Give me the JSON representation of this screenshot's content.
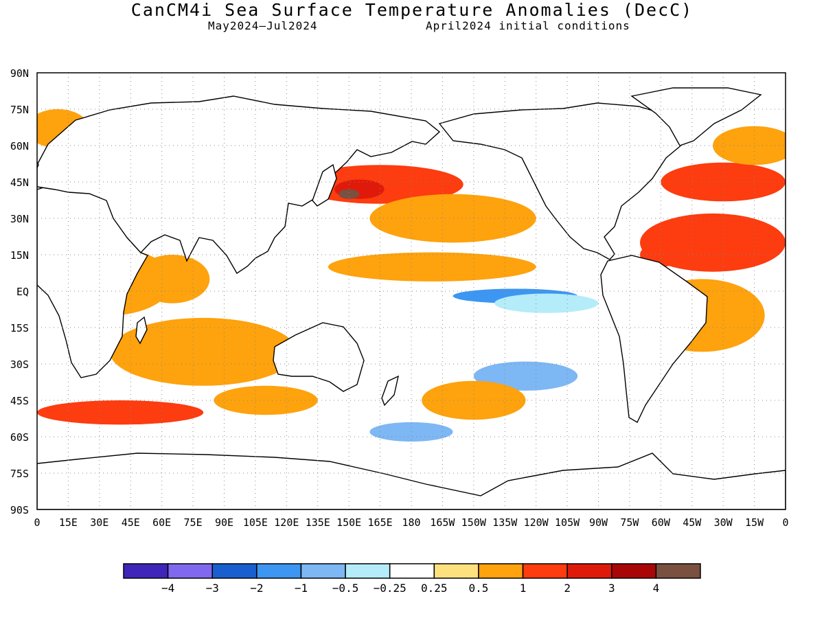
{
  "title": "CanCM4i Sea Surface Temperature Anomalies (DecC)",
  "subtitle_left": "May2024—Jul2024",
  "subtitle_right": "April2024 initial conditions",
  "map": {
    "lat_labels": [
      "90N",
      "75N",
      "60N",
      "45N",
      "30N",
      "15N",
      "EQ",
      "15S",
      "30S",
      "45S",
      "60S",
      "75S",
      "90S"
    ],
    "lon_labels": [
      "0",
      "15E",
      "30E",
      "45E",
      "60E",
      "75E",
      "90E",
      "105E",
      "120E",
      "135E",
      "150E",
      "165E",
      "180",
      "165W",
      "150W",
      "135W",
      "120W",
      "105W",
      "90W",
      "75W",
      "60W",
      "45W",
      "30W",
      "15W",
      "0"
    ],
    "grid_lines": "dotted"
  },
  "colorbar": {
    "colors": [
      "#3f26b8",
      "#8069ee",
      "#1a5fd0",
      "#3c96f2",
      "#7db7f4",
      "#b4ecfa",
      "#ffffff",
      "#fde17e",
      "#fea20d",
      "#fd3c0f",
      "#e01a0b",
      "#a90707",
      "#7a5040"
    ],
    "tick_labels": [
      "−4",
      "−3",
      "−2",
      "−1",
      "−0.5",
      "−0.25",
      "0.25",
      "0.5",
      "1",
      "2",
      "3",
      "4"
    ]
  },
  "sst_regions": [
    {
      "lon": 35,
      "lat": 4,
      "rx": 30,
      "ry": 14,
      "level": "0.5"
    },
    {
      "lon": 65,
      "lat": 5,
      "rx": 18,
      "ry": 10,
      "level": "0.5"
    },
    {
      "lon": 80,
      "lat": -25,
      "rx": 45,
      "ry": 14,
      "level": "0.5"
    },
    {
      "lon": 40,
      "lat": -50,
      "rx": 40,
      "ry": 5,
      "level": "1"
    },
    {
      "lon": 110,
      "lat": -45,
      "rx": 25,
      "ry": 6,
      "level": "0.5"
    },
    {
      "lon": 165,
      "lat": 44,
      "rx": 40,
      "ry": 8,
      "level": "1"
    },
    {
      "lon": 155,
      "lat": 42,
      "rx": 12,
      "ry": 4,
      "level": "2"
    },
    {
      "lon": 150,
      "lat": 40,
      "rx": 5,
      "ry": 2,
      "level": "4"
    },
    {
      "lon": 200,
      "lat": 30,
      "rx": 40,
      "ry": 10,
      "level": "0.5"
    },
    {
      "lon": 190,
      "lat": 10,
      "rx": 50,
      "ry": 6,
      "level": "0.5"
    },
    {
      "lon": 230,
      "lat": -2,
      "rx": 30,
      "ry": 3,
      "level": "-1"
    },
    {
      "lon": 245,
      "lat": -5,
      "rx": 25,
      "ry": 4,
      "level": "-0.25"
    },
    {
      "lon": 235,
      "lat": -35,
      "rx": 25,
      "ry": 6,
      "level": "-0.5"
    },
    {
      "lon": 210,
      "lat": -45,
      "rx": 25,
      "ry": 8,
      "level": "0.5"
    },
    {
      "lon": 325,
      "lat": 20,
      "rx": 35,
      "ry": 12,
      "level": "1"
    },
    {
      "lon": 320,
      "lat": -10,
      "rx": 30,
      "ry": 15,
      "level": "0.5"
    },
    {
      "lon": 330,
      "lat": 45,
      "rx": 30,
      "ry": 8,
      "level": "1"
    },
    {
      "lon": 300,
      "lat": 15,
      "rx": 10,
      "ry": 5,
      "level": "1"
    },
    {
      "lon": 10,
      "lat": 67,
      "rx": 15,
      "ry": 8,
      "level": "0.5"
    },
    {
      "lon": 345,
      "lat": 60,
      "rx": 20,
      "ry": 8,
      "level": "0.5"
    },
    {
      "lon": 180,
      "lat": -58,
      "rx": 20,
      "ry": 4,
      "level": "-0.5"
    }
  ]
}
